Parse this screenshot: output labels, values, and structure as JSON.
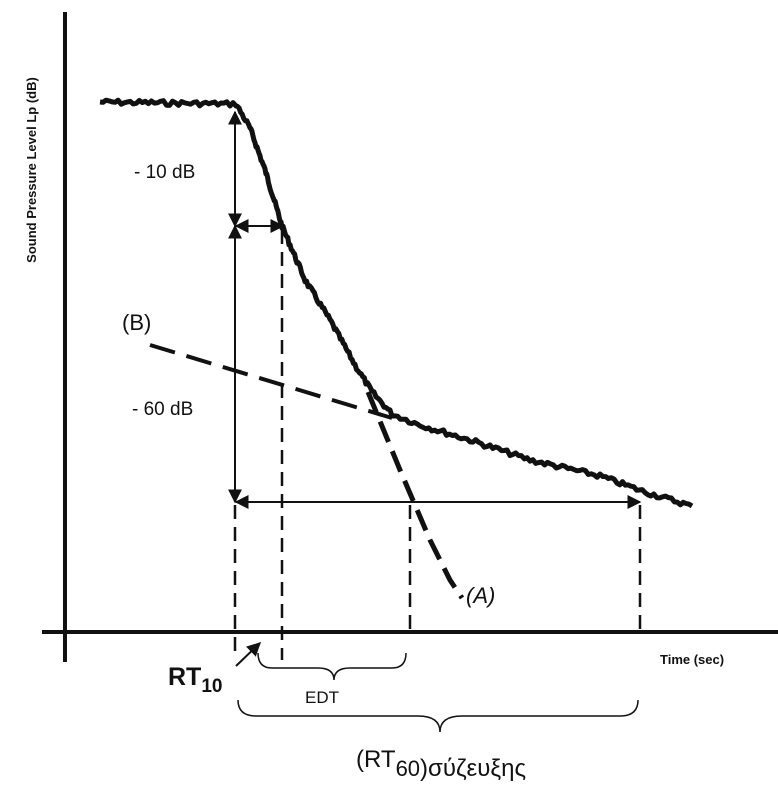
{
  "labels": {
    "y_axis": "Sound Pressure Level Lp (dB)",
    "x_axis": "Time (sec)",
    "minus_10_db": "- 10 dB",
    "minus_60_db": "- 60 dB",
    "curve_b": "(B)",
    "curve_a": "(A)",
    "rt10_main": "RT",
    "rt10_sub": "10",
    "edt": "EDT",
    "rt60_main": "(RT",
    "rt60_sub": "60",
    "rt60_suffix": ")σύζευξης"
  },
  "colors": {
    "ink": "#111111",
    "background": "#ffffff"
  }
}
